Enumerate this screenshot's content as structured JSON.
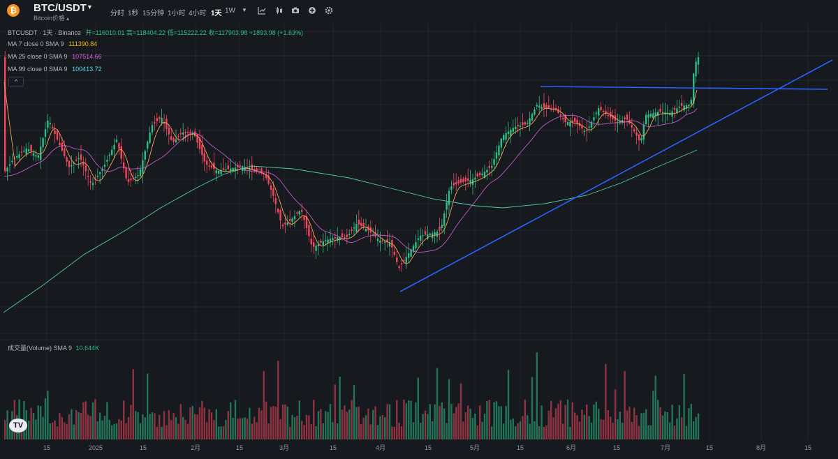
{
  "header": {
    "symbol": "BTC/USDT",
    "subtitle": "Bitcoin价格",
    "coin_icon": "bitcoin-icon",
    "timeframes": [
      "分时",
      "1秒",
      "15分钟",
      "1小时",
      "4小时",
      "1天",
      "1W"
    ],
    "active_timeframe": "1天",
    "tools": [
      "dropdown-icon",
      "indicator-icon",
      "candle-type-icon",
      "camera-icon",
      "add-icon",
      "settings-icon"
    ]
  },
  "legend": {
    "title": "BTCUSDT · 1天 · Binance",
    "ohlc": "开=116010.01 高=118404.22 低=115222.22 收=117903.98 +1893.98 (+1.63%)",
    "ma7_label": "MA 7 close 0 SMA 9",
    "ma7_value": "111390.84",
    "ma25_label": "MA 25 close 0 SMA 9",
    "ma25_value": "107514.66",
    "ma99_label": "MA 99 close 0 SMA 9",
    "ma99_value": "100413.72",
    "collapse": "^"
  },
  "volume": {
    "label": "成交量(Volume) SMA 9",
    "value": "10.644K"
  },
  "xaxis": {
    "ticks": [
      {
        "label": "15"
      },
      {
        "label": "2025"
      },
      {
        "label": "15"
      },
      {
        "label": "2月"
      },
      {
        "label": "15"
      },
      {
        "label": "3月"
      },
      {
        "label": "15"
      },
      {
        "label": "4月"
      },
      {
        "label": "15"
      },
      {
        "label": "5月"
      },
      {
        "label": "15"
      },
      {
        "label": "6月"
      },
      {
        "label": "15"
      },
      {
        "label": "7月"
      },
      {
        "label": "15"
      },
      {
        "label": "8月"
      },
      {
        "label": "15"
      }
    ]
  },
  "colors": {
    "bg": "#161a1f",
    "up": "#2ebd85",
    "down": "#f6465d",
    "ma7": "#f0a35a",
    "ma25": "#c05ac8",
    "ma99": "#55c9a2",
    "trendline": "#2962ff",
    "ohlc_text": "#2ebd85",
    "ma7_text": "#f0b90b",
    "ma25_text": "#e05ce0",
    "ma99_text": "#5cd6f0"
  },
  "logo": "TV"
}
